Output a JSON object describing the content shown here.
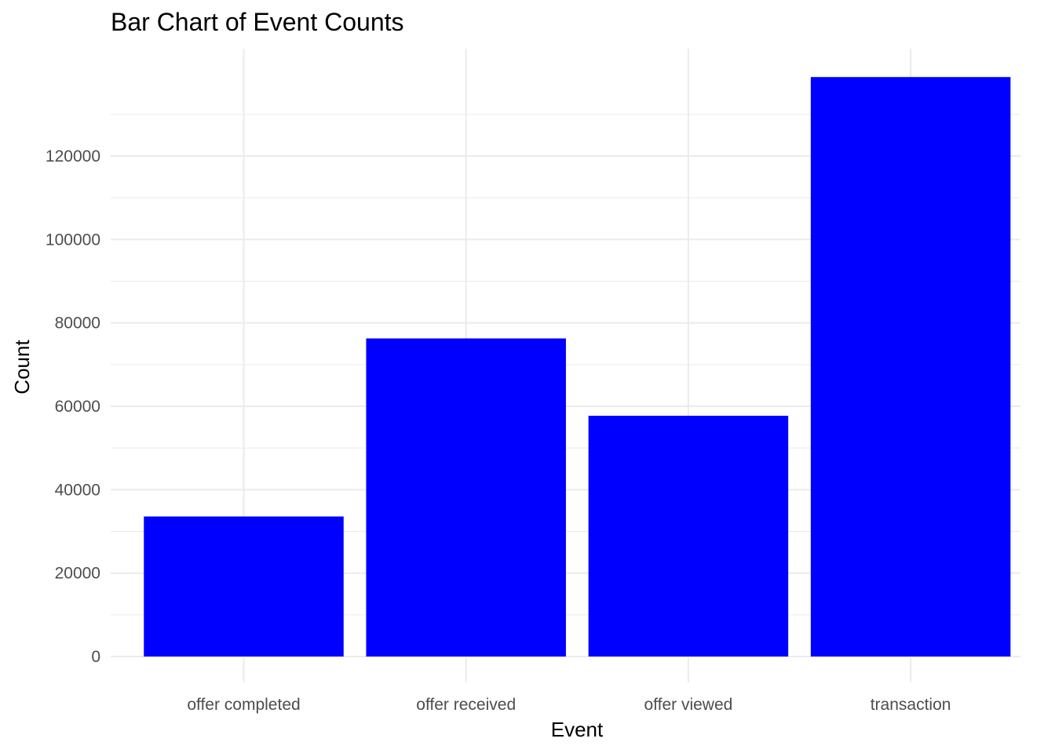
{
  "chart_data": {
    "type": "bar",
    "title": "Bar Chart of Event Counts",
    "xlabel": "Event",
    "ylabel": "Count",
    "categories": [
      "offer completed",
      "offer received",
      "offer viewed",
      "transaction"
    ],
    "values": [
      33579,
      76277,
      57725,
      138953
    ],
    "ylim": [
      0,
      146000
    ],
    "yticks": [
      0,
      20000,
      40000,
      60000,
      80000,
      100000,
      120000
    ],
    "ytick_labels": [
      "0",
      "20000",
      "40000",
      "60000",
      "80000",
      "100000",
      "120000"
    ],
    "grid": true,
    "bar_color": "#0000ff",
    "grid_color": "#ebebeb",
    "tick_label_color": "#4d4d4d"
  }
}
